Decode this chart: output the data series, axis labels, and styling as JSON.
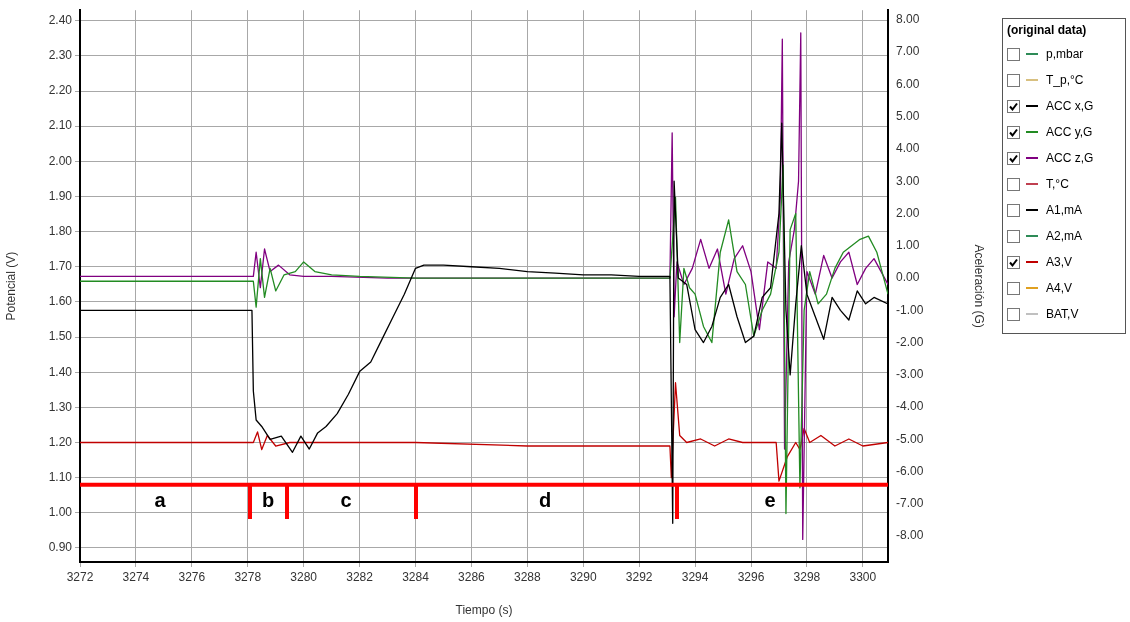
{
  "chart_data": {
    "type": "line",
    "xlabel": "Tiempo (s)",
    "ylabel": "Potencial (V)",
    "y2label": "Aceleración (G)",
    "legend_title": "(original data)",
    "legend": "right",
    "grid": true,
    "marker": "none",
    "line_style": "solid",
    "xlim": [
      3272,
      3300.9
    ],
    "xticks": [
      3272,
      3274,
      3276,
      3278,
      3280,
      3282,
      3284,
      3286,
      3288,
      3290,
      3292,
      3294,
      3296,
      3298,
      3300
    ],
    "ylim": [
      0.86,
      2.43
    ],
    "yticks": [
      {
        "value": 0.9,
        "label": "0.90"
      },
      {
        "value": 1.0,
        "label": "1.00"
      },
      {
        "value": 1.1,
        "label": "1.10"
      },
      {
        "value": 1.2,
        "label": "1.20"
      },
      {
        "value": 1.3,
        "label": "1.30"
      },
      {
        "value": 1.4,
        "label": "1.40"
      },
      {
        "value": 1.5,
        "label": "1.50"
      },
      {
        "value": 1.6,
        "label": "1.60"
      },
      {
        "value": 1.7,
        "label": "1.70"
      },
      {
        "value": 1.8,
        "label": "1.80"
      },
      {
        "value": 1.9,
        "label": "1.90"
      },
      {
        "value": 2.0,
        "label": "2.00"
      },
      {
        "value": 2.1,
        "label": "2.10"
      },
      {
        "value": 2.2,
        "label": "2.20"
      },
      {
        "value": 2.3,
        "label": "2.30"
      },
      {
        "value": 2.4,
        "label": "2.40"
      }
    ],
    "y2lim": [
      -8.8,
      8.3
    ],
    "y2ticks": [
      {
        "value": -8,
        "label": "-8.00"
      },
      {
        "value": -7,
        "label": "-7.00"
      },
      {
        "value": -6,
        "label": "-6.00"
      },
      {
        "value": -5,
        "label": "-5.00"
      },
      {
        "value": -4,
        "label": "-4.00"
      },
      {
        "value": -3,
        "label": "-3.00"
      },
      {
        "value": -2,
        "label": "-2.00"
      },
      {
        "value": -1,
        "label": "-1.00"
      },
      {
        "value": 0,
        "label": "0.00"
      },
      {
        "value": 1,
        "label": "1.00"
      },
      {
        "value": 2,
        "label": "2.00"
      },
      {
        "value": 3,
        "label": "3.00"
      },
      {
        "value": 4,
        "label": "4.00"
      },
      {
        "value": 5,
        "label": "5.00"
      },
      {
        "value": 6,
        "label": "6.00"
      },
      {
        "value": 7,
        "label": "7.00"
      },
      {
        "value": 8,
        "label": "8.00"
      }
    ],
    "ref_lines": [
      {
        "axis": "y",
        "value": 1.08,
        "color": "#ff0000"
      }
    ],
    "annotations": [
      "a",
      "b",
      "c",
      "d",
      "e"
    ],
    "series": [
      {
        "name": "p,mbar",
        "color": "#2e8b57"
      },
      {
        "name": "T_p,°C",
        "color": "#d8c080"
      },
      {
        "name": "ACC x,G",
        "color": "#000000",
        "axis": "y2",
        "x": [
          3272,
          3278.15,
          3278.2,
          3278.3,
          3278.5,
          3278.8,
          3279.2,
          3279.6,
          3279.9,
          3280.2,
          3280.5,
          3280.8,
          3281.2,
          3281.6,
          3282,
          3282.4,
          3282.8,
          3283.2,
          3283.6,
          3284,
          3284.3,
          3285,
          3286,
          3287,
          3288,
          3289,
          3290,
          3291,
          3292,
          3293.1,
          3293.2,
          3293.25,
          3293.4,
          3293.7,
          3294,
          3294.3,
          3294.6,
          3294.9,
          3295.2,
          3295.5,
          3295.8,
          3296.1,
          3296.4,
          3296.7,
          3297,
          3297.1,
          3297.25,
          3297.4,
          3297.6,
          3297.8,
          3298,
          3298.3,
          3298.6,
          3298.9,
          3299.2,
          3299.5,
          3299.8,
          3300.1,
          3300.4,
          3300.9
        ],
        "values": [
          -1.0,
          -1.0,
          -3.5,
          -4.4,
          -4.6,
          -5.0,
          -4.9,
          -5.4,
          -4.9,
          -5.3,
          -4.8,
          -4.6,
          -4.2,
          -3.6,
          -2.9,
          -2.6,
          -1.9,
          -1.2,
          -0.5,
          0.3,
          0.4,
          0.4,
          0.35,
          0.3,
          0.2,
          0.15,
          0.1,
          0.1,
          0.05,
          0.05,
          -7.6,
          3.0,
          0.0,
          -0.2,
          -1.6,
          -2.0,
          -1.5,
          -0.6,
          -0.2,
          -1.2,
          -2.0,
          -1.8,
          -0.6,
          -0.3,
          2.0,
          4.8,
          -1.0,
          -3.0,
          -0.8,
          1.0,
          -0.5,
          -1.2,
          -1.9,
          -0.6,
          -1.0,
          -1.3,
          -0.4,
          -0.8,
          -0.6,
          -0.8
        ]
      },
      {
        "name": "ACC y,G",
        "color": "#228b22",
        "axis": "y2",
        "x": [
          3272,
          3278.2,
          3278.3,
          3278.45,
          3278.6,
          3278.8,
          3279,
          3279.3,
          3279.7,
          3280,
          3280.4,
          3281,
          3282,
          3284,
          3287,
          3290,
          3293.1,
          3293.3,
          3293.45,
          3293.6,
          3293.8,
          3294,
          3294.3,
          3294.6,
          3294.9,
          3295.2,
          3295.5,
          3295.8,
          3296.1,
          3296.4,
          3296.7,
          3297,
          3297.15,
          3297.25,
          3297.4,
          3297.6,
          3297.75,
          3297.9,
          3298.1,
          3298.4,
          3298.7,
          3299,
          3299.3,
          3299.6,
          3299.9,
          3300.2,
          3300.5,
          3300.9
        ],
        "values": [
          -0.1,
          -0.1,
          -0.9,
          0.6,
          -0.6,
          0.3,
          -0.4,
          0.1,
          0.2,
          0.5,
          0.2,
          0.1,
          0.05,
          0.0,
          0.0,
          0.0,
          0.0,
          2.5,
          -2.0,
          0.3,
          -0.3,
          -0.5,
          -1.5,
          -2.0,
          0.8,
          1.8,
          0.2,
          -0.2,
          -1.8,
          -1.0,
          -0.5,
          0.8,
          3.5,
          -7.3,
          1.5,
          2.0,
          -6.5,
          -1.0,
          0.2,
          -0.8,
          -0.5,
          0.3,
          0.8,
          1.0,
          1.2,
          1.3,
          0.8,
          -0.5
        ]
      },
      {
        "name": "ACC z,G",
        "color": "#800080",
        "axis": "y2",
        "x": [
          3272,
          3278.2,
          3278.3,
          3278.45,
          3278.6,
          3278.8,
          3279.1,
          3279.5,
          3280,
          3281,
          3283,
          3286,
          3290,
          3293.1,
          3293.18,
          3293.25,
          3293.35,
          3293.6,
          3293.9,
          3294.2,
          3294.5,
          3294.8,
          3295.1,
          3295.4,
          3295.7,
          3296,
          3296.3,
          3296.6,
          3296.9,
          3297.05,
          3297.12,
          3297.2,
          3297.35,
          3297.55,
          3297.7,
          3297.78,
          3297.85,
          3298,
          3298.3,
          3298.6,
          3298.9,
          3299.2,
          3299.5,
          3299.8,
          3300.1,
          3300.4,
          3300.9
        ],
        "values": [
          0.05,
          0.05,
          0.8,
          -0.3,
          0.9,
          0.2,
          0.4,
          0.1,
          0.05,
          0.05,
          0.0,
          0.0,
          0.0,
          0.0,
          4.5,
          -1.2,
          0.5,
          -0.2,
          0.3,
          1.2,
          0.3,
          0.9,
          -0.5,
          0.6,
          1.0,
          0.2,
          -1.6,
          0.5,
          0.3,
          2.5,
          7.4,
          -5.3,
          0.5,
          1.5,
          3.0,
          7.6,
          -8.1,
          0.2,
          -0.5,
          0.7,
          0.0,
          0.5,
          0.8,
          -0.2,
          0.3,
          0.6,
          -0.2
        ]
      },
      {
        "name": "T,°C",
        "color": "#c04050"
      },
      {
        "name": "A1,mA",
        "color": "#000000"
      },
      {
        "name": "A2,mA",
        "color": "#2e8b57"
      },
      {
        "name": "A3,V",
        "color": "#c00000",
        "x": [
          3272,
          3278.2,
          3278.35,
          3278.5,
          3278.7,
          3279,
          3279.5,
          3280,
          3284,
          3288,
          3293.1,
          3293.15,
          3293.3,
          3293.45,
          3293.7,
          3294.2,
          3294.7,
          3295.2,
          3295.7,
          3296.2,
          3296.9,
          3297.0,
          3297.3,
          3297.6,
          3297.75,
          3297.9,
          3298.1,
          3298.5,
          3299,
          3299.5,
          3300,
          3300.9
        ],
        "values": [
          1.2,
          1.2,
          1.23,
          1.18,
          1.22,
          1.19,
          1.2,
          1.2,
          1.2,
          1.19,
          1.19,
          1.1,
          1.37,
          1.22,
          1.2,
          1.21,
          1.19,
          1.21,
          1.2,
          1.2,
          1.2,
          1.09,
          1.16,
          1.2,
          1.18,
          1.24,
          1.2,
          1.22,
          1.19,
          1.21,
          1.19,
          1.2
        ]
      },
      {
        "name": "A4,V",
        "color": "#e0a020"
      },
      {
        "name": "BAT,V",
        "color": "#c0c0c0"
      }
    ]
  }
}
